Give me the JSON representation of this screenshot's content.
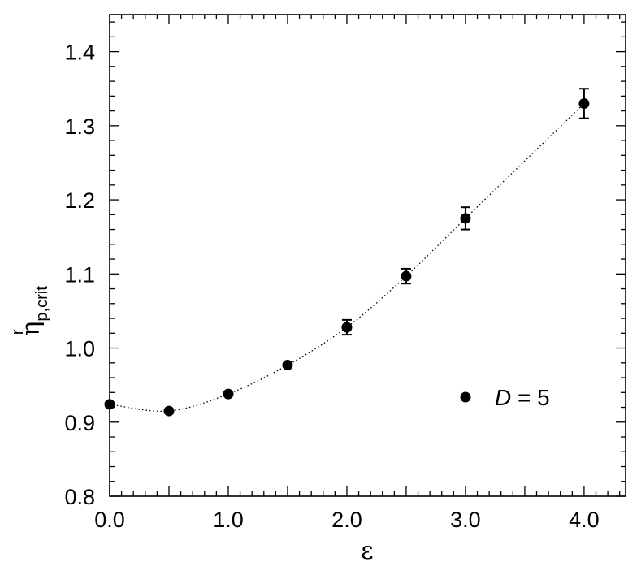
{
  "chart_data": {
    "type": "scatter",
    "title": "",
    "xlabel": "ε",
    "ylabel": {
      "main": "η",
      "superscript": "r",
      "subscript": "p,crit"
    },
    "xlim": [
      0.0,
      4.35
    ],
    "ylim": [
      0.8,
      1.45
    ],
    "x_ticks": [
      0.0,
      1.0,
      2.0,
      3.0,
      4.0
    ],
    "x_tick_labels": [
      "0.0",
      "1.0",
      "2.0",
      "3.0",
      "4.0"
    ],
    "y_ticks": [
      0.8,
      0.9,
      1.0,
      1.1,
      1.2,
      1.3,
      1.4
    ],
    "y_tick_labels": [
      "0.8",
      "0.9",
      "1.0",
      "1.1",
      "1.2",
      "1.3",
      "1.4"
    ],
    "grid": false,
    "legend_position": "right",
    "series": [
      {
        "name_italic": "D",
        "name_rest": " = 5",
        "marker": "filled-circle",
        "line_style": "dotted",
        "color": "#000000",
        "x": [
          0.0,
          0.5,
          1.0,
          1.5,
          2.0,
          2.5,
          3.0,
          4.0
        ],
        "y": [
          0.924,
          0.915,
          0.938,
          0.977,
          1.028,
          1.097,
          1.175,
          1.33
        ],
        "yerr": [
          0.0,
          0.0,
          0.0,
          0.0,
          0.01,
          0.01,
          0.015,
          0.02
        ]
      }
    ]
  }
}
